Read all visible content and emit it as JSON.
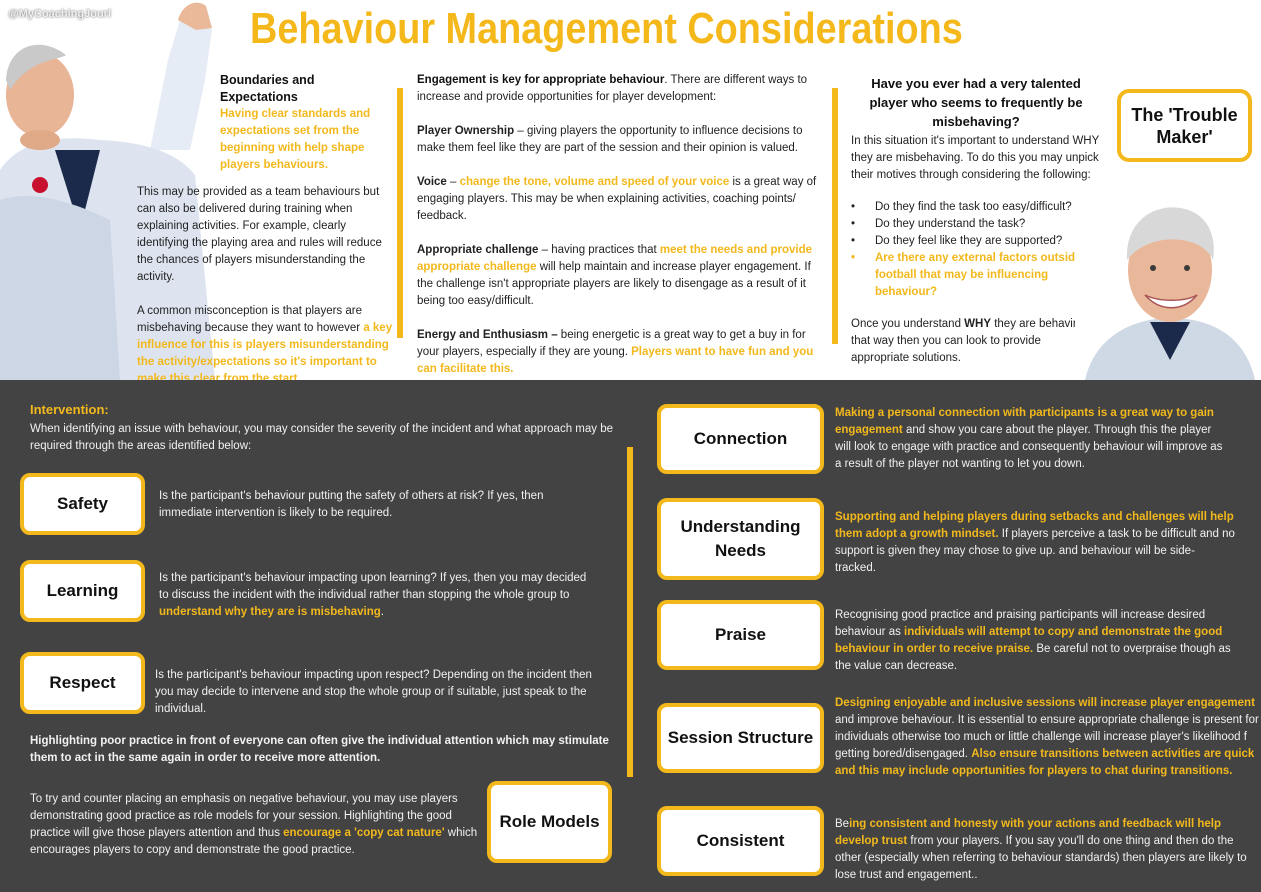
{
  "header": {
    "handle": "@MyCoachingJourl",
    "title": "Behaviour Management Considerations"
  },
  "boundaries": {
    "heading": "Boundaries and Expectations",
    "highlight": "Having clear standards and expectations set from the beginning with help shape players behaviours.",
    "p1": "This may be provided as a team behaviours but can also be delivered during training when explaining activities. For example, clearly identifying the playing area and rules will reduce the chances of players misunderstanding the activity.",
    "p2_plain": "A common misconception is that players are misbehaving because they want to however ",
    "p2_highlight": "a key influence for this is players misunderstanding the activity/expectations so it's important to make this clear from the start."
  },
  "engagement": {
    "intro_bold": "Engagement is key for appropriate behaviour",
    "intro_plain": ". There are different ways to increase and provide opportunities for player development:",
    "ownership_label": "Player Ownership",
    "ownership_text": " – giving players the opportunity to influence decisions to make them feel like they are part of the session and their opinion is valued.",
    "voice_label": "Voice",
    "voice_dash": " – ",
    "voice_highlight": "change the tone, volume and speed of your voice",
    "voice_text": " is a great way of engaging players. This may be when explaining activities, coaching points/ feedback.",
    "challenge_label": "Appropriate challenge",
    "challenge_text1": " – having practices that ",
    "challenge_highlight": "meet the needs and provide appropriate challenge",
    "challenge_text2": " will help maintain and increase player engagement. If the challenge isn't appropriate players are likely to disengage as a result of it being too easy/difficult.",
    "energy_label": "Energy and Enthusiasm –",
    "energy_text": " being energetic is a great way to get a buy in for your players, especially if they are young. ",
    "energy_highlight": "Players want to have fun and you can facilitate this."
  },
  "trouble": {
    "question": "Have you ever had a very talented player who seems to frequently be misbehaving?",
    "box_label": "The 'Trouble Maker'",
    "intro": "In this situation it's important to understand WHY they are misbehaving. To do this you may unpick their motives through considering the following:",
    "bullets": [
      "Do they find the task too easy/difficult?",
      "Do they understand the task?",
      "Do they feel like they are supported?"
    ],
    "bullet_highlight": "Are there any external factors outside of football that may be influencing behaviour?",
    "outro_1": "Once you understand ",
    "outro_bold": "WHY",
    "outro_2": " they are behaving that way then you can look to provide appropriate solutions."
  },
  "intervention": {
    "heading": "Intervention:",
    "intro": "When identifying an issue with behaviour, you may consider the severity of the incident and what approach may be required through the areas identified below:",
    "safety_label": "Safety",
    "safety_text": "Is the participant's behaviour putting the safety of others at risk? If yes, then immediate intervention is likely to be required.",
    "learning_label": "Learning",
    "learning_text": "Is the participant's behaviour impacting upon learning? If yes, then you may decided to discuss the incident with the individual rather than stopping the whole group to ",
    "learning_highlight": "understand why they are is misbehaving",
    "learning_end": ".",
    "respect_label": "Respect",
    "respect_text": "Is the participant's behaviour impacting upon respect? Depending on the incident then you may decide to intervene and stop the whole group or if suitable, just speak to the individual.",
    "poor_practice": "Highlighting poor practice in front of everyone can often give the individual attention which may stimulate them to act in the same again in order to receive more attention.",
    "role_text": "To try and counter placing an emphasis on negative behaviour, you may use players demonstrating good practice as role models for your session. Highlighting the good practice will give those players attention and thus ",
    "role_highlight": "encourage a 'copy cat nature'",
    "role_end": " which encourages players to copy and demonstrate the good practice.",
    "role_label": "Role Models"
  },
  "right": {
    "connection_label": "Connection",
    "connection_highlight": "Making a personal connection with participants is a great way to gain engagement",
    "connection_text": " and show you care about the player. Through this the player will look to engage with practice and consequently behaviour will improve as a result of the player not wanting to let you down.",
    "needs_label": "Understanding Needs",
    "needs_highlight": "Supporting and helping players during setbacks and challenges will help them adopt a growth mindset.",
    "needs_text": " If players perceive a task to be difficult and no support is given they may chose to give up. and behaviour will be side-tracked.",
    "praise_label": "Praise",
    "praise_text1": "Recognising good practice and praising participants will increase desired behaviour as ",
    "praise_highlight": "individuals will attempt to copy and demonstrate the good behaviour in order to receive praise.",
    "praise_text2": " Be careful not to overpraise though as the value can decrease.",
    "structure_label": "Session Structure",
    "structure_highlight1": "Designing enjoyable and inclusive sessions will increase player engagement",
    "structure_text": " and improve behaviour. It is essential to ensure appropriate challenge is present for individuals otherwise too much or little challenge will increase player's likelihood f getting bored/disengaged. ",
    "structure_highlight2": "Also ensure transitions between activities are quick and this may include opportunities for players to chat during transitions.",
    "consistent_label": "Consistent",
    "consistent_text1": "Be",
    "consistent_highlight": "ing consistent and honesty with your actions and feedback will help develop trust",
    "consistent_text2": " from your players. If you say you'll do one thing and then do the other (especially when referring to behaviour standards) then players are likely to lose trust and engagement.."
  },
  "colors": {
    "accent": "#f2b81c",
    "dark_bg": "#434343"
  }
}
